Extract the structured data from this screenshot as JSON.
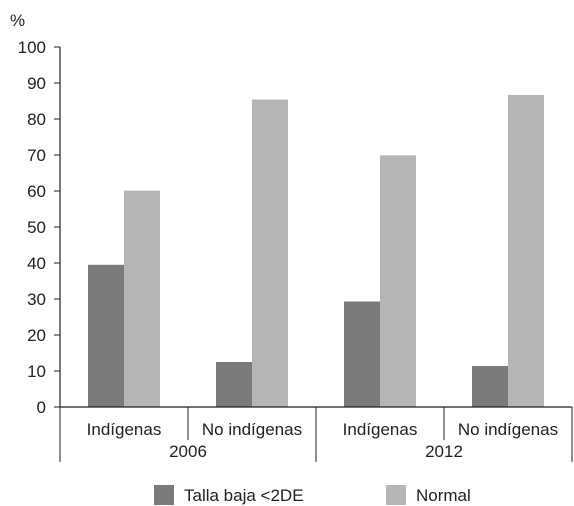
{
  "chart_data": {
    "type": "bar",
    "title": "",
    "xlabel": "",
    "ylabel": "%",
    "ylim": [
      0,
      100
    ],
    "yticks": [
      0,
      10,
      20,
      30,
      40,
      50,
      60,
      70,
      80,
      90,
      100
    ],
    "grid": false,
    "legend_position": "bottom",
    "categories": [
      "Indígenas",
      "No indígenas",
      "Indígenas",
      "No indígenas"
    ],
    "groups": [
      {
        "label": "2006",
        "span": 2
      },
      {
        "label": "2012",
        "span": 2
      }
    ],
    "series": [
      {
        "name": "Talla baja <2DE",
        "color": "#7a7a7c",
        "values": [
          39.5,
          12.5,
          29.3,
          11.4
        ]
      },
      {
        "name": "Normal",
        "color": "#b5b5b7",
        "values": [
          60.1,
          85.4,
          69.9,
          86.7
        ]
      }
    ]
  }
}
